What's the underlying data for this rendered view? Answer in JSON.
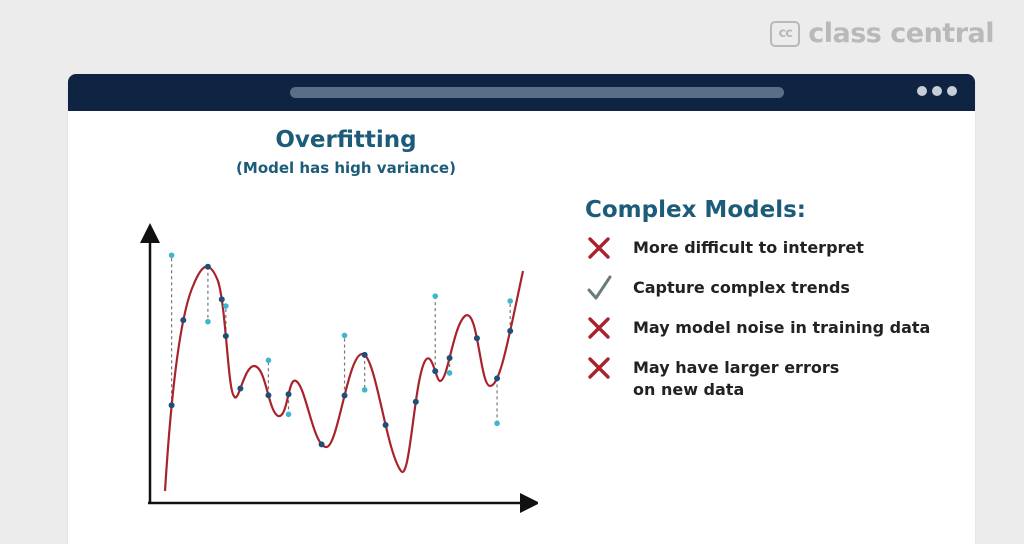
{
  "brand": {
    "badge": "cc",
    "name": "class central"
  },
  "diagram": {
    "title": "Overfitting",
    "subtitle": "(Model has high variance)"
  },
  "panel": {
    "title": "Complex Models:",
    "items": [
      {
        "icon": "cross-icon",
        "text": "More difficult to interpret"
      },
      {
        "icon": "check-icon",
        "text": "Capture complex trends"
      },
      {
        "icon": "cross-icon",
        "text": "May model noise in training data"
      },
      {
        "icon": "cross-icon",
        "text": "May have larger errors\non new data"
      }
    ]
  },
  "colors": {
    "titlebar": "#0e2442",
    "heading": "#1c5b7a",
    "curve": "#a8232b",
    "train_point": "#1f4e79",
    "test_point": "#3fb5cf",
    "cross": "#a8232b",
    "check": "#6b7a7f"
  }
}
